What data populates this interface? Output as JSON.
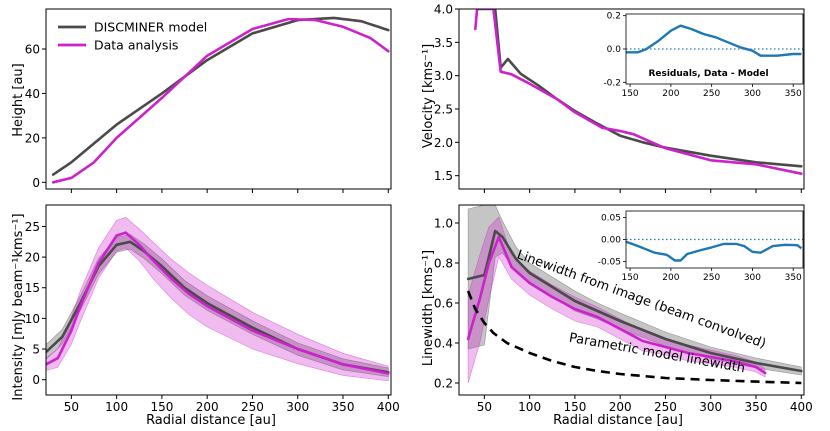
{
  "chart_data": [
    {
      "id": "height",
      "type": "line",
      "xlabel": "",
      "ylabel": "Height [au]",
      "xlim": [
        22,
        403
      ],
      "ylim": [
        -3,
        78
      ],
      "xticks": [
        50,
        100,
        150,
        200,
        250,
        300,
        350,
        400
      ],
      "show_xticklabels": false,
      "yticks": [
        0,
        20,
        40,
        60
      ],
      "legend": {
        "placement": "top-left",
        "entries": [
          "DISCMINER model",
          "Data analysis"
        ]
      },
      "series": [
        {
          "name": "DISCMINER model",
          "color": "#4a4a4a",
          "x": [
            30,
            50,
            100,
            150,
            200,
            250,
            300,
            340,
            370,
            400
          ],
          "y": [
            3.5,
            9,
            26,
            40,
            55,
            67,
            73,
            74,
            72.5,
            68.5
          ]
        },
        {
          "name": "Data analysis",
          "color": "#cc22cc",
          "x": [
            30,
            50,
            75,
            100,
            150,
            200,
            250,
            290,
            320,
            350,
            380,
            400
          ],
          "y": [
            0,
            2,
            9,
            20,
            38,
            57,
            69,
            73.5,
            73,
            70,
            65,
            59
          ]
        }
      ]
    },
    {
      "id": "velocity",
      "type": "line",
      "xlabel": "",
      "ylabel": "Velocity [kms⁻¹]",
      "xlim": [
        22,
        403
      ],
      "ylim": [
        1.3,
        4.0
      ],
      "xticks": [
        50,
        100,
        150,
        200,
        250,
        300,
        350,
        400
      ],
      "show_xticklabels": false,
      "yticks": [
        1.5,
        2.0,
        2.5,
        3.0,
        3.5,
        4.0
      ],
      "series": [
        {
          "name": "DISCMINER model",
          "color": "#4a4a4a",
          "x": [
            62,
            68,
            76,
            90,
            110,
            130,
            150,
            175,
            200,
            225,
            250,
            300,
            350,
            400
          ],
          "y": [
            4.0,
            3.12,
            3.25,
            3.03,
            2.85,
            2.65,
            2.47,
            2.28,
            2.1,
            2.0,
            1.92,
            1.8,
            1.7,
            1.64
          ]
        },
        {
          "name": "Data analysis",
          "color": "#cc22cc",
          "x": [
            40,
            42,
            46,
            60,
            68,
            80,
            100,
            130,
            150,
            180,
            200,
            215,
            230,
            250,
            275,
            300,
            350,
            400
          ],
          "y": [
            3.7,
            4.0,
            4.0,
            4.0,
            3.06,
            3.02,
            2.88,
            2.65,
            2.45,
            2.22,
            2.17,
            2.12,
            2.03,
            1.91,
            1.82,
            1.73,
            1.67,
            1.53
          ]
        }
      ],
      "inset": {
        "title": "Residuals, Data - Model",
        "xlim": [
          145,
          362
        ],
        "ylim": [
          -0.21,
          0.21
        ],
        "xticks": [
          150,
          200,
          250,
          300,
          350
        ],
        "yticks": [
          -0.2,
          0.0,
          0.2
        ],
        "x": [
          145,
          160,
          170,
          185,
          200,
          212,
          225,
          240,
          255,
          270,
          285,
          300,
          310,
          330,
          350,
          360
        ],
        "y": [
          -0.02,
          -0.02,
          0.0,
          0.05,
          0.11,
          0.14,
          0.12,
          0.09,
          0.07,
          0.04,
          0.01,
          -0.01,
          -0.04,
          -0.04,
          -0.03,
          -0.03
        ]
      }
    },
    {
      "id": "intensity",
      "type": "area",
      "xlabel": "Radial distance [au]",
      "ylabel": "Intensity [mJy beam⁻¹kms⁻¹]",
      "xlim": [
        22,
        403
      ],
      "ylim": [
        -2.5,
        28.5
      ],
      "xticks": [
        50,
        100,
        150,
        200,
        250,
        300,
        350,
        400
      ],
      "yticks": [
        0,
        5,
        10,
        15,
        20,
        25
      ],
      "series": [
        {
          "name": "DISCMINER model",
          "color": "#4a4a4a",
          "x": [
            22,
            40,
            60,
            80,
            100,
            115,
            130,
            150,
            175,
            200,
            250,
            300,
            350,
            400
          ],
          "y": [
            4.5,
            7,
            12.5,
            18.5,
            22,
            22.5,
            21,
            18.5,
            15,
            12.5,
            8.5,
            5,
            2.5,
            1.2
          ],
          "band": [
            1.2,
            1.2,
            1.2,
            1.3,
            1.2,
            1.2,
            1.2,
            1.2,
            1.2,
            1.2,
            1.1,
            1.0,
            0.9,
            0.7
          ]
        },
        {
          "name": "Data analysis",
          "color": "#cc22cc",
          "x": [
            22,
            35,
            50,
            60,
            80,
            100,
            110,
            125,
            140,
            160,
            180,
            200,
            250,
            300,
            350,
            400
          ],
          "y": [
            2.5,
            3.5,
            8,
            12,
            19,
            23.5,
            24,
            22,
            19.5,
            16.5,
            14,
            12,
            8,
            5,
            2.5,
            1.0
          ],
          "band": [
            1.0,
            1.5,
            2.2,
            2.5,
            2.5,
            2.5,
            2.5,
            2.6,
            3.0,
            3.2,
            3.4,
            3.4,
            3.0,
            2.4,
            1.8,
            1.2
          ]
        }
      ]
    },
    {
      "id": "linewidth",
      "type": "area",
      "xlabel": "Radial distance [au]",
      "ylabel": "Linewidth [kms⁻¹]",
      "xlim": [
        22,
        403
      ],
      "ylim": [
        0.14,
        1.09
      ],
      "xticks": [
        50,
        100,
        150,
        200,
        250,
        300,
        350,
        400
      ],
      "yticks": [
        0.2,
        0.4,
        0.6,
        0.8,
        1.0
      ],
      "series": [
        {
          "name": "DISCMINER model",
          "color": "#4a4a4a",
          "x": [
            32,
            50,
            62,
            70,
            85,
            100,
            125,
            150,
            175,
            200,
            250,
            300,
            350,
            400
          ],
          "y": [
            0.72,
            0.74,
            0.96,
            0.93,
            0.82,
            0.75,
            0.68,
            0.61,
            0.56,
            0.51,
            0.42,
            0.35,
            0.3,
            0.26
          ],
          "band": [
            0.35,
            0.35,
            0.13,
            0.08,
            0.06,
            0.05,
            0.05,
            0.05,
            0.04,
            0.04,
            0.035,
            0.03,
            0.025,
            0.02
          ]
        },
        {
          "name": "Data analysis",
          "color": "#cc22cc",
          "x": [
            32,
            45,
            55,
            66,
            80,
            100,
            125,
            150,
            175,
            200,
            225,
            250,
            275,
            300,
            325,
            350,
            360
          ],
          "y": [
            0.42,
            0.62,
            0.8,
            0.93,
            0.78,
            0.7,
            0.63,
            0.57,
            0.53,
            0.47,
            0.41,
            0.38,
            0.35,
            0.33,
            0.31,
            0.28,
            0.25
          ],
          "band": [
            0.22,
            0.22,
            0.18,
            0.1,
            0.06,
            0.06,
            0.06,
            0.06,
            0.05,
            0.05,
            0.05,
            0.04,
            0.04,
            0.035,
            0.03,
            0.025,
            0.02
          ]
        },
        {
          "name": "Parametric model linewidth",
          "color": "#000000",
          "style": "dashed",
          "x": [
            32,
            40,
            50,
            60,
            75,
            100,
            125,
            150,
            175,
            200,
            250,
            300,
            350,
            400
          ],
          "y": [
            0.66,
            0.57,
            0.5,
            0.45,
            0.4,
            0.35,
            0.31,
            0.28,
            0.26,
            0.245,
            0.225,
            0.215,
            0.207,
            0.2
          ]
        }
      ],
      "annotations": [
        {
          "text": "Linewidth from image (beam convolved)",
          "x": 222,
          "y": 0.6,
          "angle": 20
        },
        {
          "text": "Parametric model linewidth",
          "x": 240,
          "y": 0.33,
          "angle": 10
        }
      ],
      "inset": {
        "title": "",
        "xlim": [
          145,
          362
        ],
        "ylim": [
          -0.065,
          0.065
        ],
        "xticks": [
          150,
          200,
          250,
          300,
          350
        ],
        "yticks": [
          -0.05,
          0.0,
          0.05
        ],
        "x": [
          145,
          160,
          180,
          195,
          205,
          212,
          220,
          235,
          250,
          265,
          280,
          290,
          300,
          310,
          325,
          340,
          355,
          360
        ],
        "y": [
          -0.005,
          -0.015,
          -0.03,
          -0.035,
          -0.048,
          -0.048,
          -0.033,
          -0.025,
          -0.018,
          -0.01,
          -0.01,
          -0.015,
          -0.028,
          -0.03,
          -0.015,
          -0.012,
          -0.013,
          -0.02
        ]
      }
    }
  ]
}
